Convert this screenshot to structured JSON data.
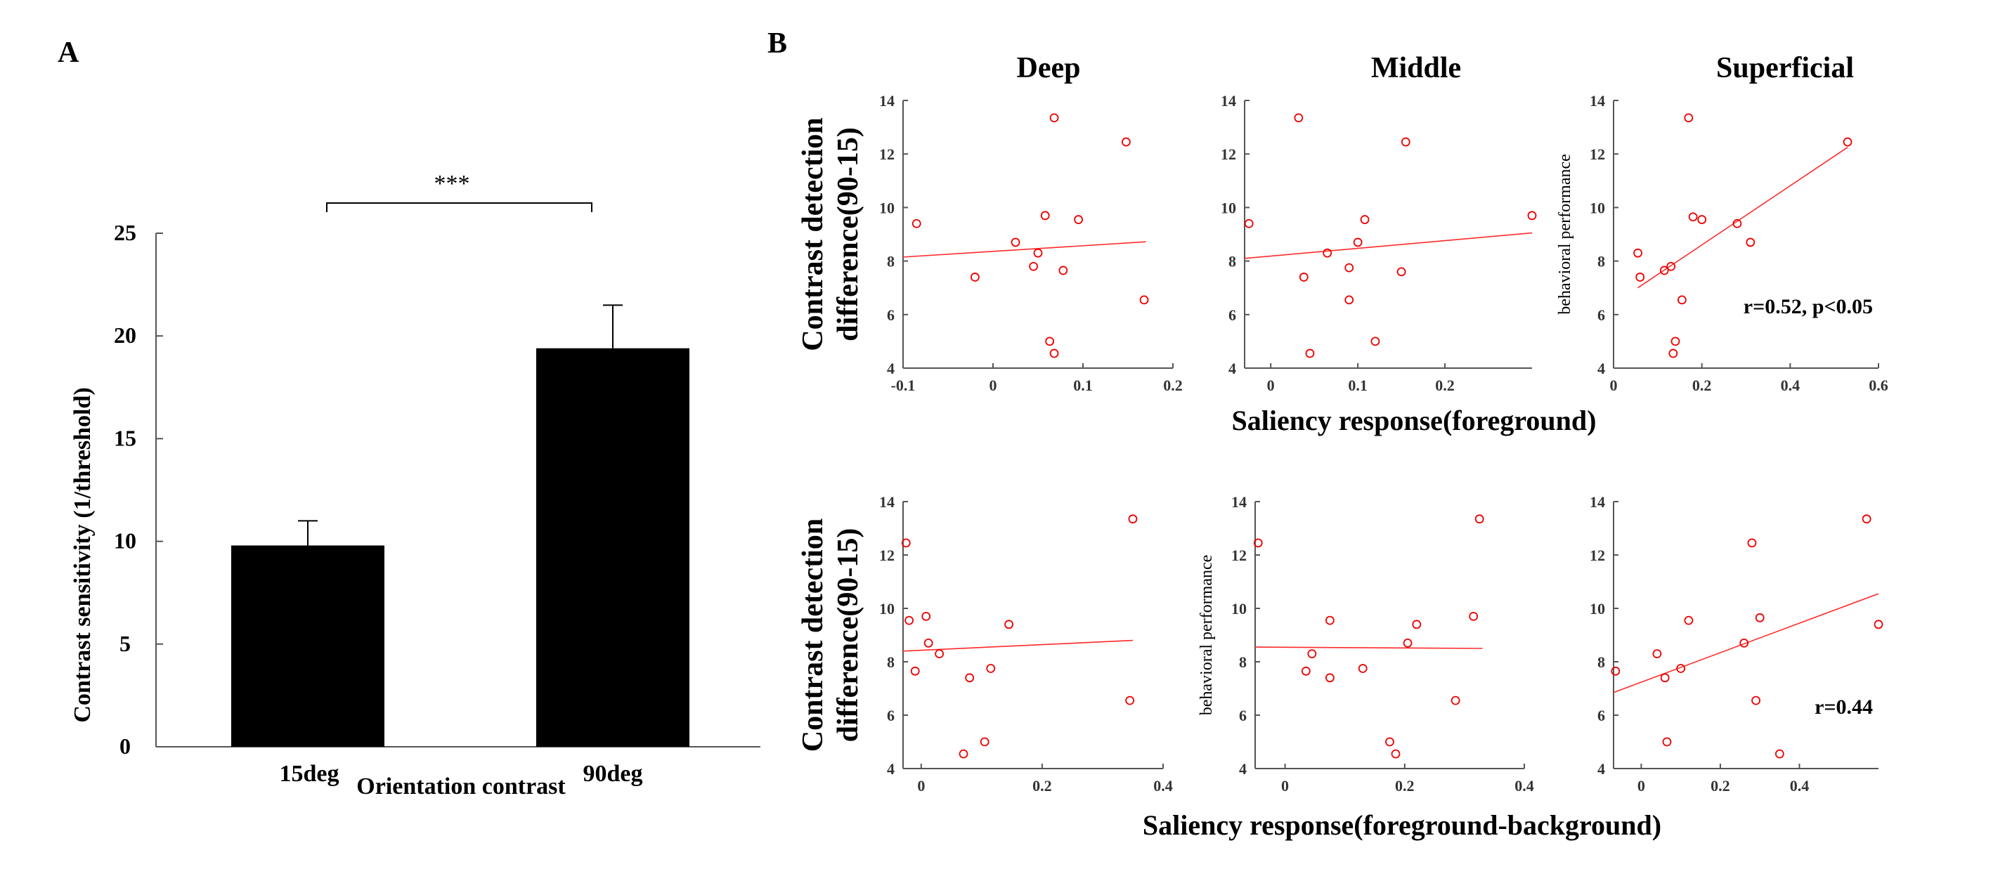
{
  "figure": {
    "panel_a_label": "A",
    "panel_b_label": "B",
    "panel_b_col_titles": [
      "Deep",
      "Middle",
      "Superficial"
    ],
    "row1_xlabel": "Saliency response(foreground)",
    "row2_xlabel": "Saliency response(foreground-background)"
  },
  "chart_data": [
    {
      "id": "A",
      "type": "bar",
      "categories": [
        "15deg",
        "90deg"
      ],
      "values": [
        9.8,
        19.4
      ],
      "errors": [
        1.2,
        2.1
      ],
      "ylabel": "Contrast sensitivity (1/threshold)",
      "xlabel": "Orientation contrast",
      "ylim": [
        0,
        25
      ],
      "yticks": [
        0,
        5,
        10,
        15,
        20,
        25
      ],
      "significance": "***"
    },
    {
      "id": "B-row1-deep",
      "type": "scatter",
      "title": "Deep",
      "ylabel_lines": [
        "Contrast detection",
        "difference(90-15)"
      ],
      "xlim": [
        -0.1,
        0.2
      ],
      "ylim": [
        4,
        14
      ],
      "xticks": [
        -0.1,
        0,
        0.1,
        0.2
      ],
      "xtick_labels": [
        "-0.1",
        "0",
        "0.1",
        "0.2"
      ],
      "yticks": [
        4,
        6,
        8,
        10,
        12,
        14
      ],
      "x": [
        -0.085,
        -0.02,
        0.025,
        0.045,
        0.05,
        0.058,
        0.063,
        0.068,
        0.068,
        0.078,
        0.095,
        0.148,
        0.168
      ],
      "y": [
        9.4,
        7.4,
        8.7,
        7.8,
        8.3,
        9.7,
        5.0,
        4.55,
        13.35,
        7.65,
        9.55,
        12.45,
        6.55
      ],
      "fit": [
        [
          -0.1,
          8.15
        ],
        [
          0.17,
          8.72
        ]
      ],
      "annotation": ""
    },
    {
      "id": "B-row1-middle",
      "type": "scatter",
      "title": "Middle",
      "xlim": [
        -0.03,
        0.3
      ],
      "ylim": [
        4,
        14
      ],
      "xticks": [
        0,
        0.1,
        0.2
      ],
      "xtick_labels": [
        "0",
        "0.1",
        "0.2"
      ],
      "yticks": [
        4,
        6,
        8,
        10,
        12,
        14
      ],
      "x": [
        -0.025,
        0.032,
        0.038,
        0.045,
        0.065,
        0.09,
        0.09,
        0.1,
        0.108,
        0.12,
        0.15,
        0.155,
        0.3
      ],
      "y": [
        9.4,
        13.35,
        7.4,
        4.55,
        8.3,
        7.75,
        6.55,
        8.7,
        9.55,
        5.0,
        7.6,
        12.45,
        9.7
      ],
      "fit": [
        [
          -0.03,
          8.1
        ],
        [
          0.3,
          9.05
        ]
      ],
      "annotation": ""
    },
    {
      "id": "B-row1-superficial",
      "type": "scatter",
      "title": "Superficial",
      "ylabel": "behavioral performance",
      "xlim": [
        0,
        0.6
      ],
      "ylim": [
        4,
        14
      ],
      "xticks": [
        0,
        0.2,
        0.4,
        0.6
      ],
      "xtick_labels": [
        "0",
        "0.2",
        "0.4",
        "0.6"
      ],
      "yticks": [
        4,
        6,
        8,
        10,
        12,
        14
      ],
      "x": [
        0.055,
        0.06,
        0.115,
        0.13,
        0.135,
        0.14,
        0.155,
        0.17,
        0.18,
        0.2,
        0.28,
        0.31,
        0.53
      ],
      "y": [
        8.3,
        7.4,
        7.65,
        7.8,
        4.55,
        5.0,
        6.55,
        13.35,
        9.65,
        9.55,
        9.4,
        8.7,
        12.45
      ],
      "fit": [
        [
          0.055,
          7.0
        ],
        [
          0.53,
          12.25
        ]
      ],
      "annotation": "r=0.52, p<0.05"
    },
    {
      "id": "B-row2-deep",
      "type": "scatter",
      "ylabel_lines": [
        "Contrast detection",
        "difference(90-15)"
      ],
      "xlim": [
        -0.03,
        0.4
      ],
      "ylim": [
        4,
        14
      ],
      "xticks": [
        0,
        0.2,
        0.4
      ],
      "xtick_labels": [
        "0",
        "0.2",
        "0.4"
      ],
      "yticks": [
        4,
        6,
        8,
        10,
        12,
        14
      ],
      "x": [
        -0.025,
        -0.02,
        -0.01,
        0.008,
        0.012,
        0.03,
        0.07,
        0.08,
        0.105,
        0.115,
        0.145,
        0.345,
        0.35
      ],
      "y": [
        12.45,
        9.55,
        7.65,
        9.7,
        8.7,
        8.3,
        4.55,
        7.4,
        5.0,
        7.75,
        9.4,
        6.55,
        13.35
      ],
      "fit": [
        [
          -0.03,
          8.4
        ],
        [
          0.35,
          8.8
        ]
      ],
      "annotation": ""
    },
    {
      "id": "B-row2-middle",
      "type": "scatter",
      "ylabel": "behavioral performance",
      "xlim": [
        -0.05,
        0.4
      ],
      "ylim": [
        4,
        14
      ],
      "xticks": [
        0,
        0.2,
        0.4
      ],
      "xtick_labels": [
        "0",
        "0.2",
        "0.4"
      ],
      "yticks": [
        4,
        6,
        8,
        10,
        12,
        14
      ],
      "x": [
        -0.045,
        0.035,
        0.045,
        0.075,
        0.075,
        0.13,
        0.175,
        0.185,
        0.205,
        0.22,
        0.285,
        0.315,
        0.325
      ],
      "y": [
        12.45,
        7.65,
        8.3,
        9.55,
        7.4,
        7.75,
        5.0,
        4.55,
        8.7,
        9.4,
        6.55,
        9.7,
        13.35
      ],
      "fit": [
        [
          -0.05,
          8.55
        ],
        [
          0.33,
          8.5
        ]
      ],
      "annotation": ""
    },
    {
      "id": "B-row2-superficial",
      "type": "scatter",
      "xlim": [
        -0.07,
        0.6
      ],
      "ylim": [
        4,
        14
      ],
      "xticks": [
        0,
        0.2,
        0.4
      ],
      "xtick_labels": [
        "0",
        "0.2",
        "0.4"
      ],
      "yticks": [
        4,
        6,
        8,
        10,
        12,
        14
      ],
      "x": [
        -0.065,
        0.04,
        0.06,
        0.065,
        0.1,
        0.12,
        0.26,
        0.28,
        0.29,
        0.3,
        0.35,
        0.57,
        0.6
      ],
      "y": [
        7.65,
        8.3,
        7.4,
        5.0,
        7.75,
        9.55,
        8.7,
        12.45,
        6.55,
        9.65,
        4.55,
        13.35,
        9.4
      ],
      "fit": [
        [
          -0.07,
          6.85
        ],
        [
          0.6,
          10.55
        ]
      ],
      "annotation": "r=0.44"
    }
  ]
}
